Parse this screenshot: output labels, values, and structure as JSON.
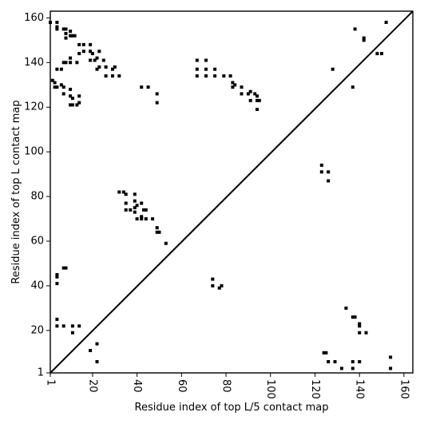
{
  "chart_data": {
    "type": "scatter",
    "xlabel": "Residue index of top L/5 contact map",
    "ylabel": "Residue index of top L contact map",
    "xlim": [
      1,
      164
    ],
    "ylim": [
      1,
      163
    ],
    "x_ticks": [
      {
        "value": 1,
        "label": "1"
      },
      {
        "value": 20,
        "label": "20"
      },
      {
        "value": 40,
        "label": "40"
      },
      {
        "value": 60,
        "label": "60"
      },
      {
        "value": 80,
        "label": "80"
      },
      {
        "value": 100,
        "label": "100"
      },
      {
        "value": 120,
        "label": "120"
      },
      {
        "value": 140,
        "label": "140"
      },
      {
        "value": 160,
        "label": "160"
      }
    ],
    "y_ticks": [
      {
        "value": 1,
        "label": "1"
      },
      {
        "value": 20,
        "label": "20"
      },
      {
        "value": 40,
        "label": "40"
      },
      {
        "value": 60,
        "label": "60"
      },
      {
        "value": 80,
        "label": "80"
      },
      {
        "value": 100,
        "label": "100"
      },
      {
        "value": 120,
        "label": "120"
      },
      {
        "value": 140,
        "label": "140"
      },
      {
        "value": 160,
        "label": "160"
      }
    ],
    "diagonal": true,
    "grid": false,
    "marker_color": "#000000",
    "series": [
      {
        "region": "top L contact map (upper-left triangle)",
        "points": [
          [
            1,
            158
          ],
          [
            4,
            158
          ],
          [
            4,
            156
          ],
          [
            4,
            155
          ],
          [
            7,
            155
          ],
          [
            8,
            155
          ],
          [
            8,
            153
          ],
          [
            8,
            151
          ],
          [
            10,
            154
          ],
          [
            10,
            152
          ],
          [
            11,
            152
          ],
          [
            12,
            152
          ],
          [
            2,
            132
          ],
          [
            3,
            131
          ],
          [
            3,
            129
          ],
          [
            4,
            129
          ],
          [
            4,
            137
          ],
          [
            6,
            137
          ],
          [
            6,
            130
          ],
          [
            7,
            129
          ],
          [
            7,
            126
          ],
          [
            7,
            140
          ],
          [
            8,
            140
          ],
          [
            10,
            128
          ],
          [
            10,
            125
          ],
          [
            11,
            124
          ],
          [
            10,
            121
          ],
          [
            11,
            121
          ],
          [
            13,
            121
          ],
          [
            14,
            122
          ],
          [
            14,
            125
          ],
          [
            10,
            140
          ],
          [
            10,
            142
          ],
          [
            13,
            140
          ],
          [
            14,
            144
          ],
          [
            14,
            148
          ],
          [
            16,
            148
          ],
          [
            16,
            145
          ],
          [
            19,
            148
          ],
          [
            19,
            145
          ],
          [
            20,
            144
          ],
          [
            19,
            141
          ],
          [
            21,
            141
          ],
          [
            22,
            142
          ],
          [
            22,
            137
          ],
          [
            23,
            138
          ],
          [
            23,
            145
          ],
          [
            25,
            141
          ],
          [
            26,
            138
          ],
          [
            26,
            134
          ],
          [
            29,
            134
          ],
          [
            29,
            137
          ],
          [
            30,
            138
          ],
          [
            32,
            134
          ],
          [
            42,
            129
          ],
          [
            45,
            129
          ],
          [
            49,
            126
          ],
          [
            49,
            122
          ],
          [
            67,
            141
          ],
          [
            71,
            141
          ],
          [
            67,
            137
          ],
          [
            67,
            134
          ],
          [
            71,
            137
          ],
          [
            71,
            134
          ],
          [
            75,
            137
          ],
          [
            75,
            134
          ],
          [
            79,
            134
          ],
          [
            82,
            134
          ],
          [
            83,
            131
          ],
          [
            83,
            129
          ],
          [
            84,
            130
          ],
          [
            87,
            129
          ],
          [
            87,
            126
          ],
          [
            90,
            126
          ],
          [
            91,
            127
          ],
          [
            91,
            123
          ],
          [
            94,
            123
          ],
          [
            94,
            125
          ],
          [
            93,
            126
          ],
          [
            95,
            123
          ],
          [
            94,
            119
          ],
          [
            128,
            137
          ],
          [
            137,
            129
          ],
          [
            138,
            155
          ],
          [
            142,
            151
          ],
          [
            142,
            150
          ],
          [
            148,
            144
          ],
          [
            150,
            144
          ],
          [
            152,
            158
          ],
          [
            32,
            82
          ],
          [
            34,
            82
          ],
          [
            35,
            81
          ],
          [
            39,
            81
          ],
          [
            35,
            77
          ],
          [
            35,
            74
          ],
          [
            37,
            74
          ],
          [
            39,
            78
          ],
          [
            39,
            75
          ],
          [
            39,
            73
          ],
          [
            40,
            76
          ],
          [
            42,
            77
          ],
          [
            43,
            74
          ],
          [
            44,
            74
          ],
          [
            42,
            71
          ],
          [
            42,
            70
          ],
          [
            44,
            70
          ],
          [
            47,
            70
          ],
          [
            40,
            70
          ],
          [
            49,
            66
          ],
          [
            49,
            64
          ],
          [
            50,
            64
          ],
          [
            53,
            59
          ],
          [
            4,
            45
          ],
          [
            4,
            44
          ],
          [
            7,
            48
          ],
          [
            8,
            48
          ],
          [
            4,
            41
          ],
          [
            4,
            25
          ],
          [
            4,
            22
          ],
          [
            7,
            22
          ],
          [
            11,
            22
          ],
          [
            11,
            19
          ],
          [
            14,
            22
          ],
          [
            19,
            11
          ],
          [
            22,
            14
          ],
          [
            22,
            6
          ]
        ]
      },
      {
        "region": "top L/5 contact map (lower-right triangle)",
        "points": [
          [
            74,
            43
          ],
          [
            74,
            40
          ],
          [
            77,
            39
          ],
          [
            78,
            40
          ],
          [
            123,
            94
          ],
          [
            123,
            91
          ],
          [
            126,
            91
          ],
          [
            126,
            87
          ],
          [
            124,
            10
          ],
          [
            125,
            10
          ],
          [
            126,
            6
          ],
          [
            129,
            6
          ],
          [
            132,
            3
          ],
          [
            134,
            30
          ],
          [
            137,
            26
          ],
          [
            138,
            26
          ],
          [
            140,
            23
          ],
          [
            140,
            22
          ],
          [
            140,
            19
          ],
          [
            143,
            19
          ],
          [
            137,
            6
          ],
          [
            137,
            3
          ],
          [
            140,
            6
          ],
          [
            154,
            8
          ],
          [
            154,
            3
          ]
        ]
      }
    ]
  }
}
